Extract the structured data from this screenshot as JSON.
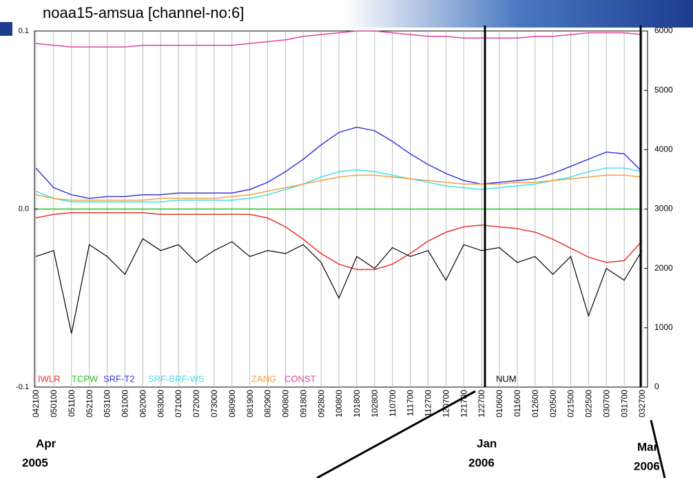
{
  "chart_data": {
    "type": "line",
    "title": "noaa15-amsua [channel-no:6]",
    "categories": [
      "042100",
      "050100",
      "051100",
      "052100",
      "053100",
      "061000",
      "062000",
      "063000",
      "071000",
      "072000",
      "073000",
      "080900",
      "081900",
      "082900",
      "090800",
      "091800",
      "092800",
      "100800",
      "101800",
      "102800",
      "110700",
      "111700",
      "112700",
      "120700",
      "121700",
      "122700",
      "010600",
      "011600",
      "012600",
      "020500",
      "021500",
      "022500",
      "030700",
      "031700",
      "032700"
    ],
    "ylim": [
      -0.1,
      0.1
    ],
    "yticks": [
      -0.1,
      {
        "value": 0,
        "label": "0.0"
      },
      0.1
    ],
    "y2lim": [
      0,
      6000
    ],
    "y2ticks": [
      0,
      1000,
      2000,
      3000,
      4000,
      5000,
      6000
    ],
    "grid": true,
    "series": [
      {
        "name": "IWLR",
        "color": "#e8322d",
        "values": [
          -0.005,
          -0.003,
          -0.002,
          -0.002,
          -0.002,
          -0.002,
          -0.002,
          -0.003,
          -0.003,
          -0.003,
          -0.003,
          -0.003,
          -0.003,
          -0.005,
          -0.01,
          -0.017,
          -0.025,
          -0.031,
          -0.034,
          -0.034,
          -0.031,
          -0.025,
          -0.018,
          -0.013,
          -0.01,
          -0.009,
          -0.01,
          -0.011,
          -0.013,
          -0.017,
          -0.022,
          -0.027,
          -0.03,
          -0.029,
          -0.018
        ]
      },
      {
        "name": "TCPW",
        "color": "#22c222",
        "values": [
          0,
          0,
          0,
          0,
          0,
          0,
          0,
          0,
          0,
          0,
          0,
          0,
          0,
          0,
          0,
          0,
          0,
          0,
          0,
          0,
          0,
          0,
          0,
          0,
          0,
          0,
          0,
          0,
          0,
          0,
          0,
          0,
          0,
          0,
          0
        ]
      },
      {
        "name": "SRF-T2",
        "color": "#3a3ad8",
        "values": [
          0.023,
          0.012,
          0.008,
          0.006,
          0.007,
          0.007,
          0.008,
          0.008,
          0.009,
          0.009,
          0.009,
          0.009,
          0.011,
          0.015,
          0.021,
          0.028,
          0.036,
          0.043,
          0.046,
          0.044,
          0.038,
          0.031,
          0.025,
          0.02,
          0.016,
          0.014,
          0.015,
          0.016,
          0.017,
          0.02,
          0.024,
          0.028,
          0.032,
          0.031,
          0.021
        ]
      },
      {
        "name": "SRF-BRF-WS",
        "color": "#3fe0e8",
        "values": [
          0.01,
          0.006,
          0.004,
          0.004,
          0.004,
          0.004,
          0.004,
          0.004,
          0.005,
          0.005,
          0.005,
          0.005,
          0.006,
          0.008,
          0.011,
          0.014,
          0.018,
          0.021,
          0.022,
          0.021,
          0.019,
          0.017,
          0.015,
          0.013,
          0.012,
          0.011,
          0.012,
          0.013,
          0.014,
          0.016,
          0.018,
          0.021,
          0.023,
          0.023,
          0.021
        ]
      },
      {
        "name": "ZANG",
        "color": "#f0a040",
        "values": [
          0.008,
          0.006,
          0.005,
          0.005,
          0.005,
          0.005,
          0.005,
          0.006,
          0.006,
          0.006,
          0.006,
          0.007,
          0.008,
          0.01,
          0.012,
          0.014,
          0.016,
          0.018,
          0.019,
          0.019,
          0.018,
          0.017,
          0.016,
          0.015,
          0.014,
          0.014,
          0.014,
          0.015,
          0.015,
          0.016,
          0.017,
          0.018,
          0.019,
          0.019,
          0.018
        ]
      },
      {
        "name": "CONST",
        "color": "#e040a0",
        "values": [
          0.093,
          0.092,
          0.091,
          0.091,
          0.091,
          0.091,
          0.092,
          0.092,
          0.092,
          0.092,
          0.092,
          0.092,
          0.093,
          0.094,
          0.095,
          0.097,
          0.098,
          0.099,
          0.1,
          0.1,
          0.099,
          0.098,
          0.097,
          0.097,
          0.096,
          0.096,
          0.096,
          0.096,
          0.097,
          0.097,
          0.098,
          0.099,
          0.099,
          0.099,
          0.098
        ]
      },
      {
        "name": "NUM",
        "color": "#000000",
        "axis": "y2",
        "values": [
          2200,
          2300,
          900,
          2400,
          2200,
          1900,
          2500,
          2300,
          2400,
          2100,
          2300,
          2450,
          2200,
          2300,
          2250,
          2400,
          2100,
          1500,
          2200,
          2000,
          2350,
          2200,
          2300,
          1800,
          2400,
          2300,
          2350,
          2100,
          2200,
          1900,
          2200,
          1200,
          2000,
          1800,
          2300
        ]
      }
    ],
    "annotations": [
      "Apr",
      "2005",
      "Jan",
      "2006",
      "Mar",
      "2006"
    ]
  }
}
